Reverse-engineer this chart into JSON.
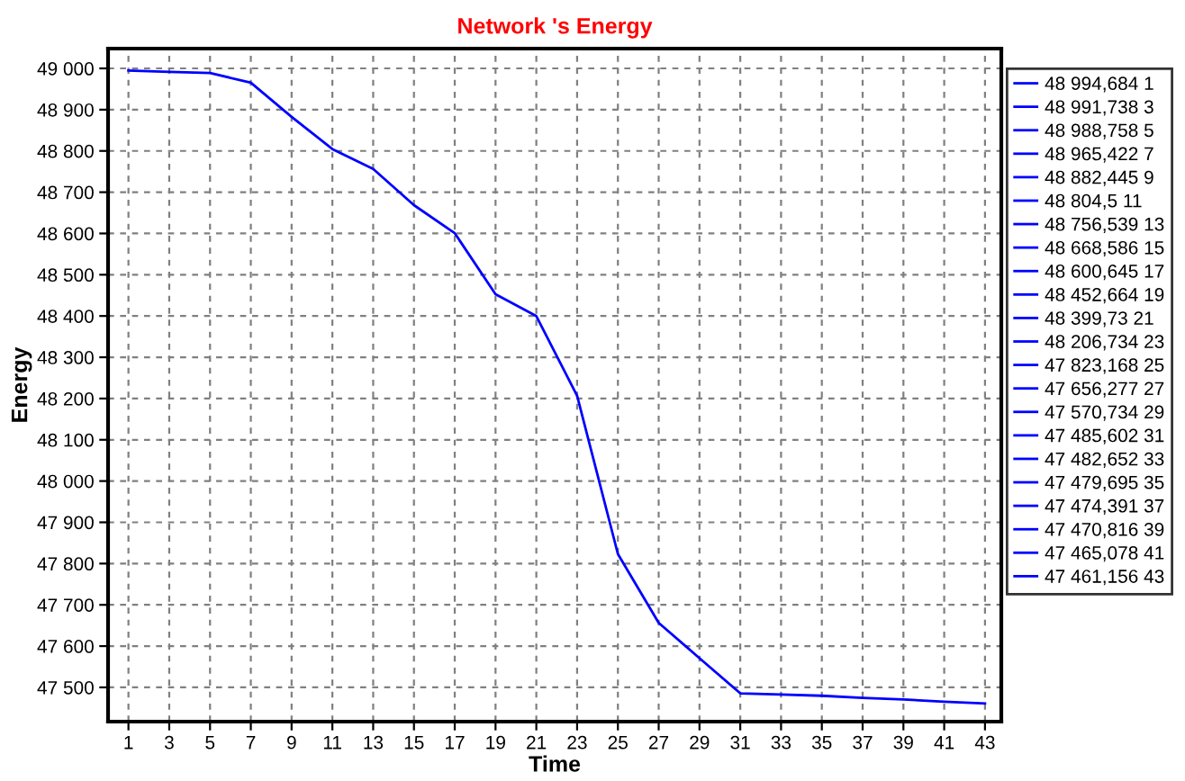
{
  "chart_data": {
    "type": "line",
    "title": "Network 's Energy",
    "xlabel": "Time",
    "ylabel": "Energy",
    "x": [
      1,
      3,
      5,
      7,
      9,
      11,
      13,
      15,
      17,
      19,
      21,
      23,
      25,
      27,
      29,
      31,
      33,
      35,
      37,
      39,
      41,
      43
    ],
    "series": [
      {
        "color": "#0000ff",
        "values": [
          48994.684,
          48991.738,
          48988.758,
          48965.422,
          48882.445,
          48804.5,
          48756.539,
          48668.586,
          48600.645,
          48452.664,
          48399.73,
          48206.734,
          47823.168,
          47656.277,
          47570.734,
          47485.602,
          47482.652,
          47479.695,
          47474.391,
          47470.816,
          47465.078,
          47461.156
        ]
      }
    ],
    "annotations": [
      "48 994,684 1",
      "48 991,738 3",
      "48 988,758 5",
      "48 965,422 7",
      "48 882,445 9",
      "48 804,5 11",
      "48 756,539 13",
      "48 668,586 15",
      "48 600,645 17",
      "48 452,664 19",
      "48 399,73 21",
      "48 206,734 23",
      "47 823,168 25",
      "47 656,277 27",
      "47 570,734 29",
      "47 485,602 31",
      "47 482,652 33",
      "47 479,695 35",
      "47 474,391 37",
      "47 470,816 39",
      "47 465,078 41",
      "47 461,156 43"
    ],
    "xlim": [
      0,
      43.8
    ],
    "xticks": [
      1,
      3,
      5,
      7,
      9,
      11,
      13,
      15,
      17,
      19,
      21,
      23,
      25,
      27,
      29,
      31,
      33,
      35,
      37,
      39,
      41,
      43
    ],
    "ylim": [
      47417,
      49048
    ],
    "yticks": [
      {
        "value": 47500,
        "label": "47 500"
      },
      {
        "value": 47600,
        "label": "47 600"
      },
      {
        "value": 47700,
        "label": "47 700"
      },
      {
        "value": 47800,
        "label": "47 800"
      },
      {
        "value": 47900,
        "label": "47 900"
      },
      {
        "value": 48000,
        "label": "48 000"
      },
      {
        "value": 48100,
        "label": "48 100"
      },
      {
        "value": 48200,
        "label": "48 200"
      },
      {
        "value": 48300,
        "label": "48 300"
      },
      {
        "value": 48400,
        "label": "48 400"
      },
      {
        "value": 48500,
        "label": "48 500"
      },
      {
        "value": 48600,
        "label": "48 600"
      },
      {
        "value": 48700,
        "label": "48 700"
      },
      {
        "value": 48800,
        "label": "48 800"
      },
      {
        "value": 48900,
        "label": "48 900"
      },
      {
        "value": 49000,
        "label": "49 000"
      }
    ],
    "grid": true,
    "line_style": "solid",
    "marker": "none"
  }
}
